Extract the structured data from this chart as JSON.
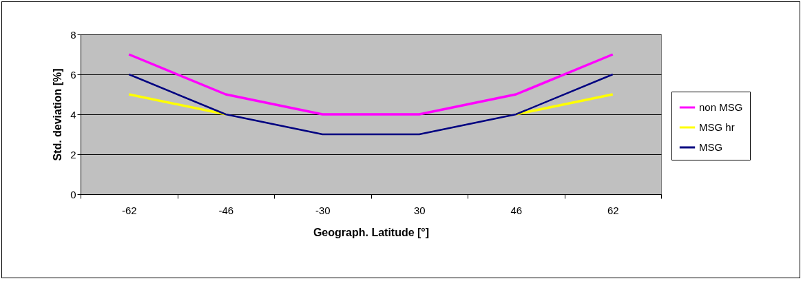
{
  "chart_data": {
    "type": "line",
    "xlabel": "Geograph. Latitude [°]",
    "ylabel": "Std. deviation [%]",
    "categories": [
      "-62",
      "-46",
      "-30",
      "30",
      "46",
      "62"
    ],
    "series": [
      {
        "name": "non MSG",
        "color": "#ff00ff",
        "values": [
          7,
          5,
          4,
          4,
          5,
          7
        ]
      },
      {
        "name": "MSG hr",
        "color": "#ffff00",
        "values": [
          5,
          4,
          null,
          null,
          4,
          5
        ]
      },
      {
        "name": "MSG",
        "color": "#000080",
        "values": [
          6,
          4,
          3,
          3,
          4,
          6
        ]
      }
    ],
    "ylim": [
      0,
      8
    ],
    "yticks": [
      0,
      2,
      4,
      6,
      8
    ],
    "grid": "y",
    "legend": "right",
    "marker": "none",
    "line_style": "solid"
  }
}
